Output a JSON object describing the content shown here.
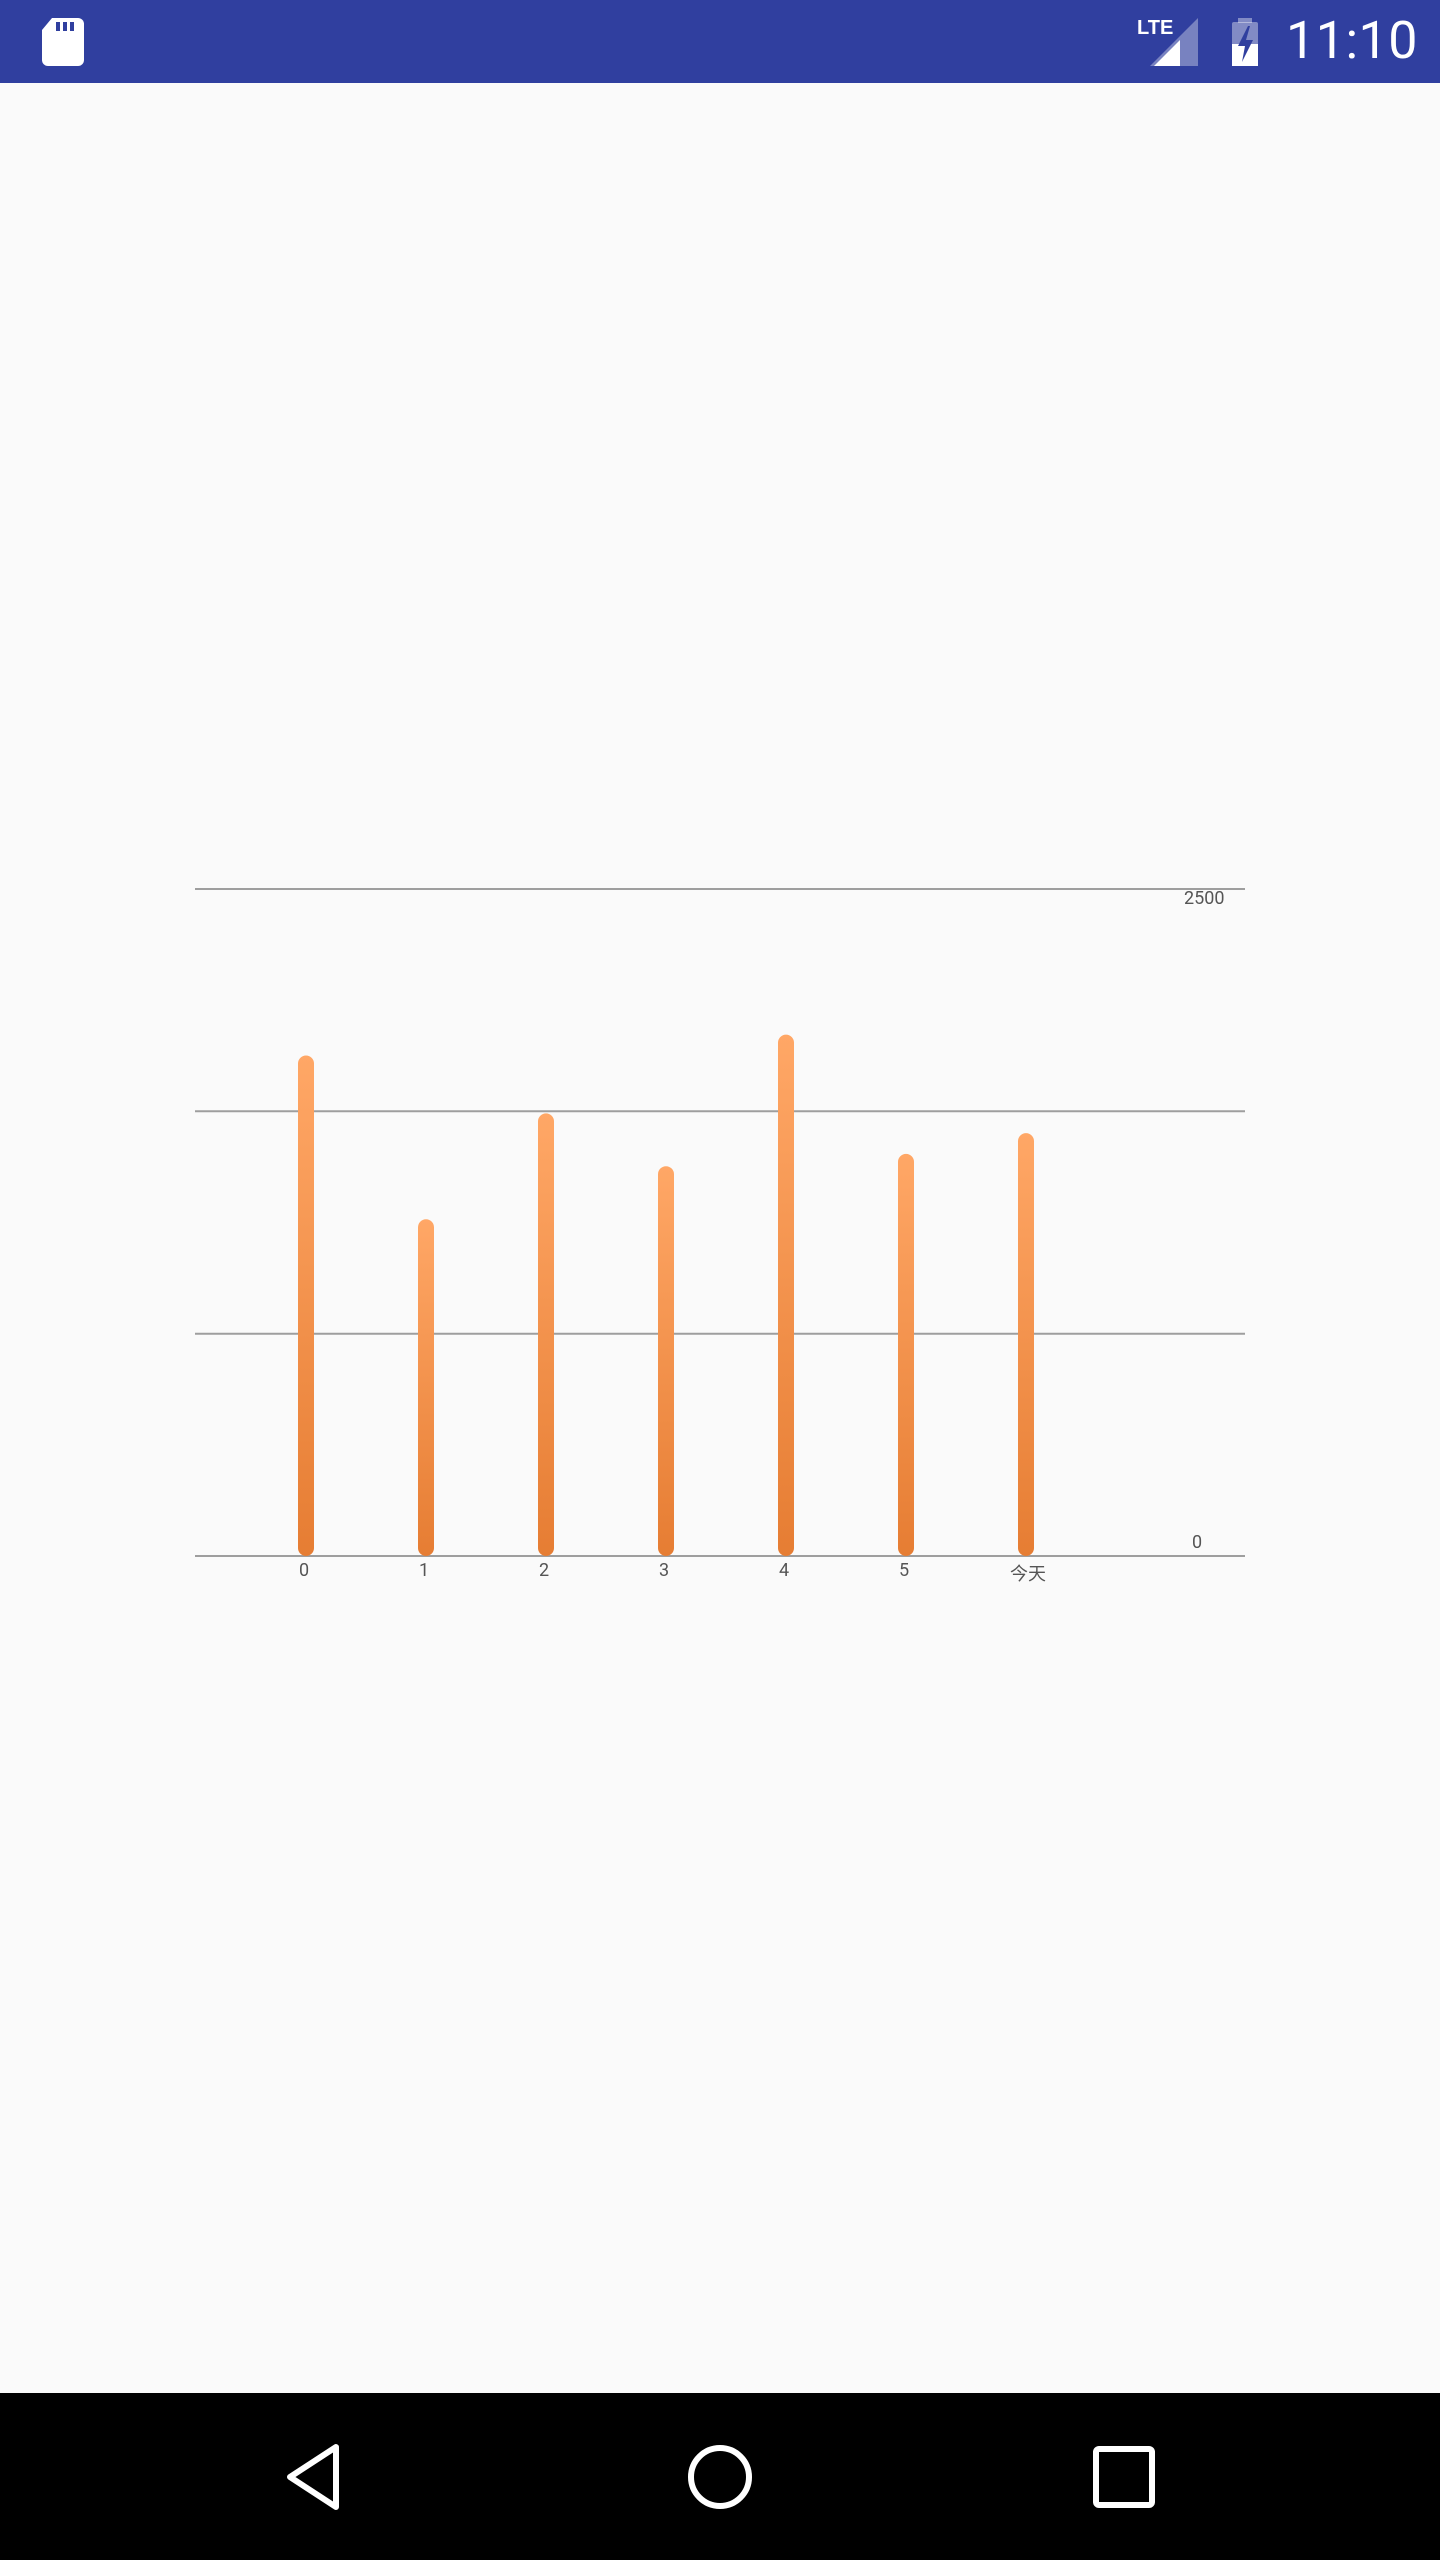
{
  "status_bar": {
    "time": "11:10",
    "network": "LTE",
    "icons": [
      "sd-card-icon",
      "lte-signal-icon",
      "battery-charging-icon"
    ],
    "background": "#303f9f"
  },
  "chart_data": {
    "type": "bar",
    "title": "",
    "xlabel": "",
    "ylabel": "",
    "categories": [
      "0",
      "1",
      "2",
      "3",
      "4",
      "5",
      "今天"
    ],
    "values": [
      1876,
      1262,
      1659,
      1461,
      1954,
      1507,
      1585
    ],
    "ylim": [
      0,
      2500
    ],
    "y_tick_labels": [
      "2500",
      "0"
    ],
    "gridlines": [
      0,
      833,
      1667,
      2500
    ],
    "grid": true,
    "bar_color_top": "#ffa766",
    "bar_color_bottom": "#e67d33",
    "grid_color": "#9e9e9e"
  },
  "nav_bar": {
    "buttons": [
      "back",
      "home",
      "recents"
    ]
  }
}
